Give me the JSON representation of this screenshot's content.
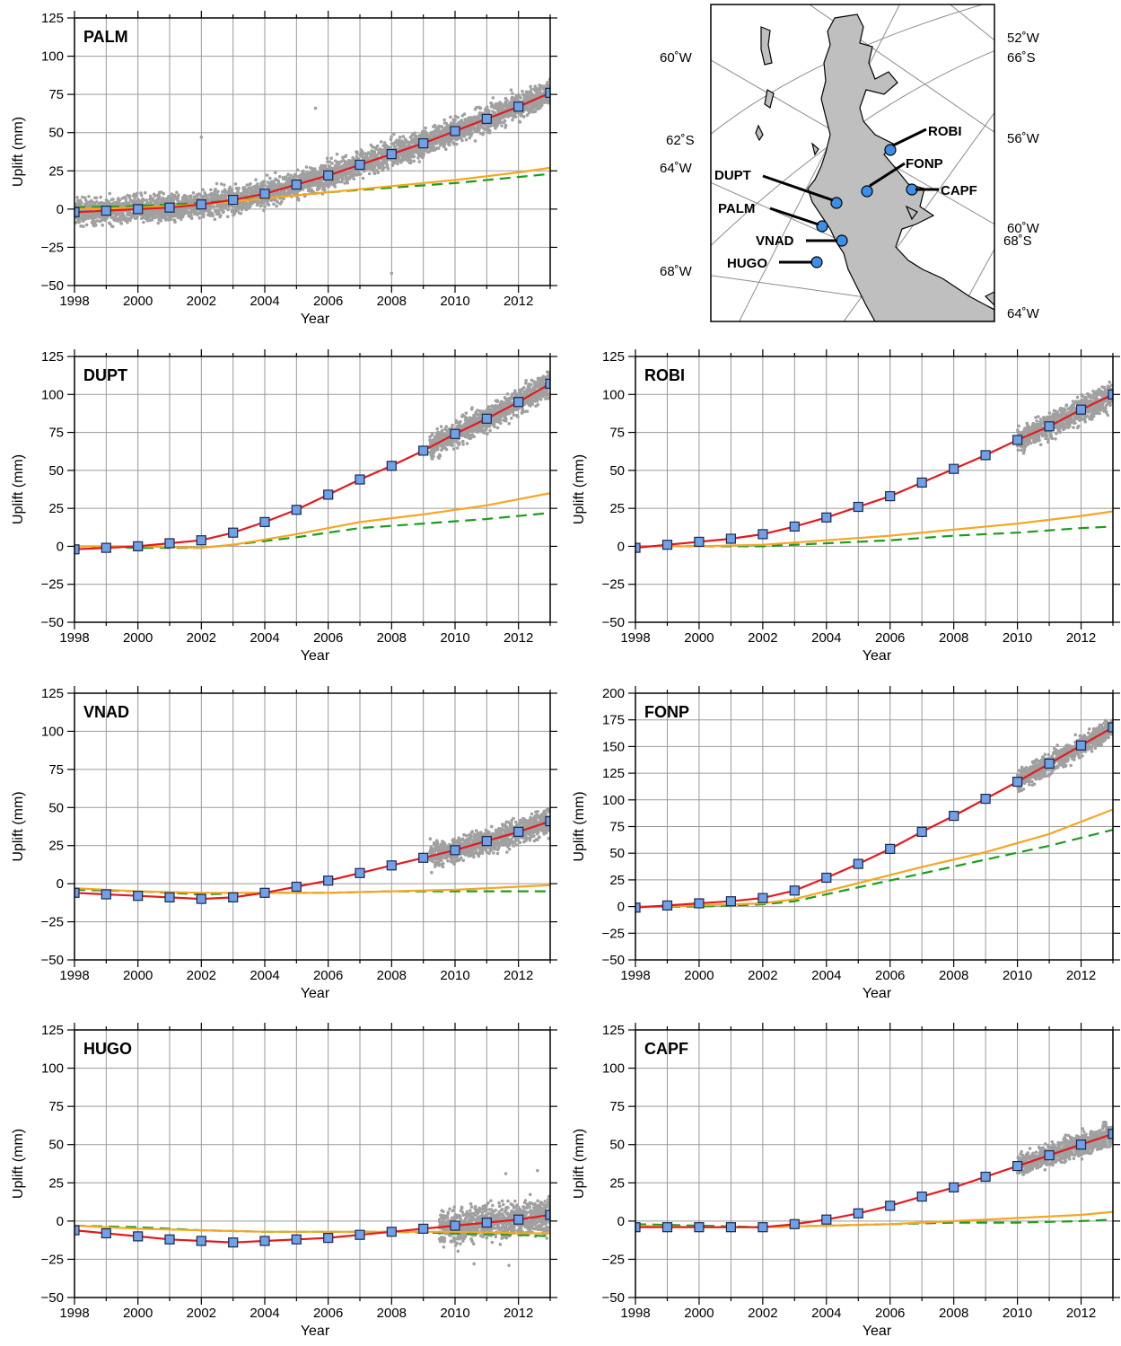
{
  "chart_data": [
    {
      "type": "line",
      "title": "PALM",
      "xlabel": "Year",
      "ylabel": "Uplift (mm)",
      "xlim": [
        1998,
        2013
      ],
      "ylim": [
        -50,
        125
      ],
      "xticks": [
        1998,
        2000,
        2002,
        2004,
        2006,
        2008,
        2010,
        2012
      ],
      "yticks": [
        -50,
        -25,
        0,
        25,
        50,
        75,
        100,
        125
      ],
      "grid": true,
      "scatter": {
        "color": "#a0a0a0",
        "start": 1998.0,
        "end": 2013.0,
        "noise": 6
      },
      "outliers": [
        [
          2002.0,
          47
        ],
        [
          2005.6,
          66
        ],
        [
          2008.0,
          -42
        ]
      ],
      "series": [
        {
          "color": "#e41a1c",
          "style": "solid",
          "markers": true,
          "x": [
            1998,
            1999,
            2000,
            2001,
            2002,
            2003,
            2004,
            2005,
            2006,
            2007,
            2008,
            2009,
            2010,
            2011,
            2012,
            2013
          ],
          "y": [
            -2,
            -1,
            0,
            1,
            3,
            6,
            10,
            16,
            22,
            29,
            36,
            43,
            51,
            59,
            67,
            76
          ]
        },
        {
          "color": "#f5a623",
          "style": "solid",
          "markers": false,
          "x": [
            1998,
            2000,
            2002,
            2004,
            2006,
            2008,
            2010,
            2012,
            2013
          ],
          "y": [
            0,
            1,
            3,
            7,
            11,
            15,
            19,
            24,
            27
          ]
        },
        {
          "color": "#1a9e1a",
          "style": "dashed",
          "markers": false,
          "x": [
            1998,
            2000,
            2002,
            2004,
            2006,
            2008,
            2010,
            2012,
            2013
          ],
          "y": [
            1,
            2,
            4,
            7,
            11,
            14,
            17,
            21,
            23
          ]
        }
      ]
    },
    {
      "type": "line",
      "title": "DUPT",
      "xlabel": "Year",
      "ylabel": "Uplift (mm)",
      "xlim": [
        1998,
        2013
      ],
      "ylim": [
        -50,
        125
      ],
      "xticks": [
        1998,
        2000,
        2002,
        2004,
        2006,
        2008,
        2010,
        2012
      ],
      "yticks": [
        -50,
        -25,
        0,
        25,
        50,
        75,
        100,
        125
      ],
      "grid": true,
      "scatter": {
        "color": "#a0a0a0",
        "start": 2009.2,
        "end": 2013.0,
        "noise": 6
      },
      "outliers": [],
      "series": [
        {
          "color": "#e41a1c",
          "style": "solid",
          "markers": true,
          "x": [
            1998,
            1999,
            2000,
            2001,
            2002,
            2003,
            2004,
            2005,
            2006,
            2007,
            2008,
            2009,
            2010,
            2011,
            2012,
            2013
          ],
          "y": [
            -2,
            -1,
            0,
            2,
            4,
            9,
            16,
            24,
            34,
            44,
            53,
            63,
            74,
            84,
            95,
            107
          ]
        },
        {
          "color": "#f5a623",
          "style": "solid",
          "markers": false,
          "x": [
            1998,
            2000,
            2002,
            2003,
            2005,
            2007,
            2009,
            2011,
            2013
          ],
          "y": [
            0,
            0,
            -1,
            1,
            8,
            16,
            21,
            27,
            35
          ]
        },
        {
          "color": "#1a9e1a",
          "style": "dashed",
          "markers": false,
          "x": [
            1998,
            2000,
            2002,
            2003,
            2005,
            2007,
            2009,
            2011,
            2013
          ],
          "y": [
            0,
            -1,
            -1,
            1,
            6,
            12,
            15,
            18,
            22
          ]
        }
      ]
    },
    {
      "type": "line",
      "title": "ROBI",
      "xlabel": "Year",
      "ylabel": "Uplift (mm)",
      "xlim": [
        1998,
        2013
      ],
      "ylim": [
        -50,
        125
      ],
      "xticks": [
        1998,
        2000,
        2002,
        2004,
        2006,
        2008,
        2010,
        2012
      ],
      "yticks": [
        -50,
        -25,
        0,
        25,
        50,
        75,
        100,
        125
      ],
      "grid": true,
      "scatter": {
        "color": "#a0a0a0",
        "start": 2010.0,
        "end": 2013.0,
        "noise": 6
      },
      "outliers": [],
      "series": [
        {
          "color": "#e41a1c",
          "style": "solid",
          "markers": true,
          "x": [
            1998,
            1999,
            2000,
            2001,
            2002,
            2003,
            2004,
            2005,
            2006,
            2007,
            2008,
            2009,
            2010,
            2011,
            2012,
            2013
          ],
          "y": [
            -1,
            1,
            3,
            5,
            8,
            13,
            19,
            26,
            33,
            42,
            51,
            60,
            70,
            79,
            90,
            100
          ]
        },
        {
          "color": "#f5a623",
          "style": "solid",
          "markers": false,
          "x": [
            1998,
            2000,
            2002,
            2004,
            2006,
            2008,
            2010,
            2012,
            2013
          ],
          "y": [
            0,
            0,
            1,
            4,
            7,
            11,
            15,
            20,
            23
          ]
        },
        {
          "color": "#1a9e1a",
          "style": "dashed",
          "markers": false,
          "x": [
            1998,
            2000,
            2002,
            2004,
            2006,
            2008,
            2010,
            2012,
            2013
          ],
          "y": [
            0,
            0,
            0,
            2,
            4,
            7,
            9,
            12,
            13
          ]
        }
      ]
    },
    {
      "type": "line",
      "title": "VNAD",
      "xlabel": "Year",
      "ylabel": "Uplift (mm)",
      "xlim": [
        1998,
        2013
      ],
      "ylim": [
        -50,
        125
      ],
      "xticks": [
        1998,
        2000,
        2002,
        2004,
        2006,
        2008,
        2010,
        2012
      ],
      "yticks": [
        -50,
        -25,
        0,
        25,
        50,
        75,
        100,
        125
      ],
      "grid": true,
      "scatter": {
        "color": "#a0a0a0",
        "start": 2009.2,
        "end": 2013.0,
        "noise": 6
      },
      "outliers": [],
      "series": [
        {
          "color": "#e41a1c",
          "style": "solid",
          "markers": true,
          "x": [
            1998,
            1999,
            2000,
            2001,
            2002,
            2003,
            2004,
            2005,
            2006,
            2007,
            2008,
            2009,
            2010,
            2011,
            2012,
            2013
          ],
          "y": [
            -6,
            -7,
            -8,
            -9,
            -10,
            -9,
            -6,
            -2,
            2,
            7,
            12,
            17,
            22,
            28,
            34,
            41
          ]
        },
        {
          "color": "#f5a623",
          "style": "solid",
          "markers": false,
          "x": [
            1998,
            2000,
            2002,
            2004,
            2006,
            2008,
            2010,
            2012,
            2013
          ],
          "y": [
            -3,
            -5,
            -6,
            -6,
            -6,
            -5,
            -4,
            -2,
            -1
          ]
        },
        {
          "color": "#1a9e1a",
          "style": "dashed",
          "markers": false,
          "x": [
            1998,
            2000,
            2002,
            2004,
            2006,
            2008,
            2010,
            2012,
            2013
          ],
          "y": [
            -4,
            -5,
            -7,
            -6,
            -6,
            -5,
            -5,
            -5,
            -5
          ]
        }
      ]
    },
    {
      "type": "line",
      "title": "FONP",
      "xlabel": "Year",
      "ylabel": "Uplift (mm)",
      "xlim": [
        1998,
        2013
      ],
      "ylim": [
        -50,
        200
      ],
      "xticks": [
        1998,
        2000,
        2002,
        2004,
        2006,
        2008,
        2010,
        2012
      ],
      "yticks": [
        -50,
        -25,
        0,
        25,
        50,
        75,
        100,
        125,
        150,
        175,
        200
      ],
      "grid": true,
      "scatter": {
        "color": "#a0a0a0",
        "start": 2010.0,
        "end": 2013.0,
        "noise": 7
      },
      "outliers": [],
      "series": [
        {
          "color": "#e41a1c",
          "style": "solid",
          "markers": true,
          "x": [
            1998,
            1999,
            2000,
            2001,
            2002,
            2003,
            2004,
            2005,
            2006,
            2007,
            2008,
            2009,
            2010,
            2011,
            2012,
            2013
          ],
          "y": [
            -1,
            1,
            3,
            5,
            8,
            15,
            27,
            40,
            54,
            70,
            85,
            101,
            117,
            134,
            151,
            168
          ]
        },
        {
          "color": "#f5a623",
          "style": "solid",
          "markers": false,
          "x": [
            1998,
            2000,
            2002,
            2003,
            2005,
            2007,
            2009,
            2011,
            2013
          ],
          "y": [
            0,
            1,
            3,
            7,
            22,
            37,
            51,
            68,
            91
          ]
        },
        {
          "color": "#1a9e1a",
          "style": "dashed",
          "markers": false,
          "x": [
            1998,
            2000,
            2002,
            2003,
            2005,
            2007,
            2009,
            2011,
            2013
          ],
          "y": [
            0,
            0,
            2,
            5,
            18,
            31,
            44,
            57,
            72
          ]
        }
      ]
    },
    {
      "type": "line",
      "title": "HUGO",
      "xlabel": "Year",
      "ylabel": "Uplift (mm)",
      "xlim": [
        1998,
        2013
      ],
      "ylim": [
        -50,
        125
      ],
      "xticks": [
        1998,
        2000,
        2002,
        2004,
        2006,
        2008,
        2010,
        2012
      ],
      "yticks": [
        -50,
        -25,
        0,
        25,
        50,
        75,
        100,
        125
      ],
      "grid": true,
      "scatter": {
        "color": "#a0a0a0",
        "start": 2009.5,
        "end": 2013.0,
        "noise": 8
      },
      "outliers": [
        [
          2011.6,
          31
        ],
        [
          2012.6,
          33
        ],
        [
          2011.7,
          -29
        ],
        [
          2010.6,
          -28
        ]
      ],
      "series": [
        {
          "color": "#e41a1c",
          "style": "solid",
          "markers": true,
          "x": [
            1998,
            1999,
            2000,
            2001,
            2002,
            2003,
            2004,
            2005,
            2006,
            2007,
            2008,
            2009,
            2010,
            2011,
            2012,
            2013
          ],
          "y": [
            -6,
            -8,
            -10,
            -12,
            -13,
            -14,
            -13,
            -12,
            -11,
            -9,
            -7,
            -5,
            -3,
            -1,
            1,
            4
          ]
        },
        {
          "color": "#f5a623",
          "style": "solid",
          "markers": false,
          "x": [
            1998,
            2000,
            2002,
            2004,
            2006,
            2008,
            2010,
            2012,
            2013
          ],
          "y": [
            -3,
            -5,
            -6,
            -7,
            -7,
            -7,
            -7,
            -8,
            -8
          ]
        },
        {
          "color": "#1a9e1a",
          "style": "dashed",
          "markers": false,
          "x": [
            1998,
            2000,
            2002,
            2004,
            2006,
            2008,
            2010,
            2012,
            2013
          ],
          "y": [
            -3,
            -4,
            -6,
            -7,
            -7,
            -7,
            -8,
            -9,
            -10
          ]
        }
      ]
    },
    {
      "type": "line",
      "title": "CAPF",
      "xlabel": "Year",
      "ylabel": "Uplift (mm)",
      "xlim": [
        1998,
        2013
      ],
      "ylim": [
        -50,
        125
      ],
      "xticks": [
        1998,
        2000,
        2002,
        2004,
        2006,
        2008,
        2010,
        2012
      ],
      "yticks": [
        -50,
        -25,
        0,
        25,
        50,
        75,
        100,
        125
      ],
      "grid": true,
      "scatter": {
        "color": "#a0a0a0",
        "start": 2010.0,
        "end": 2013.0,
        "noise": 5
      },
      "outliers": [],
      "series": [
        {
          "color": "#e41a1c",
          "style": "solid",
          "markers": true,
          "x": [
            1998,
            1999,
            2000,
            2001,
            2002,
            2003,
            2004,
            2005,
            2006,
            2007,
            2008,
            2009,
            2010,
            2011,
            2012,
            2013
          ],
          "y": [
            -4,
            -4,
            -4,
            -4,
            -4,
            -2,
            1,
            5,
            10,
            16,
            22,
            29,
            36,
            43,
            50,
            57
          ]
        },
        {
          "color": "#f5a623",
          "style": "solid",
          "markers": false,
          "x": [
            1998,
            2000,
            2002,
            2004,
            2006,
            2008,
            2010,
            2012,
            2013
          ],
          "y": [
            -3,
            -4,
            -4,
            -3,
            -2,
            0,
            2,
            4,
            6
          ]
        },
        {
          "color": "#1a9e1a",
          "style": "dashed",
          "markers": false,
          "x": [
            1998,
            2000,
            2002,
            2004,
            2006,
            2008,
            2010,
            2012,
            2013
          ],
          "y": [
            -2,
            -3,
            -4,
            -3,
            -2,
            -1,
            -1,
            0,
            1
          ]
        }
      ]
    }
  ],
  "map": {
    "graticule_labels": [
      "52˚W",
      "66˚S",
      "60˚W",
      "56˚W",
      "62˚S",
      "64˚W",
      "60˚W",
      "68˚S",
      "68˚W",
      "64˚W"
    ],
    "stations": [
      "ROBI",
      "FONP",
      "CAPF",
      "DUPT",
      "PALM",
      "VNAD",
      "HUGO"
    ],
    "land_color": "#bfbfbf",
    "station_color": "#3b8fe8"
  }
}
